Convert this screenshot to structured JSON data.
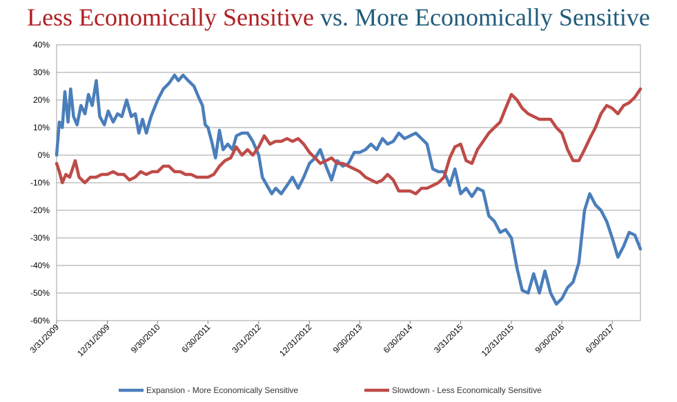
{
  "title": {
    "part1": "Less Economically Sensitive",
    "part2": "vs. More Economically Sensitive"
  },
  "chart_data": {
    "type": "line",
    "title": "Less Economically Sensitive vs. More Economically Sensitive",
    "xlabel": "",
    "ylabel": "",
    "ylim": [
      -60,
      40
    ],
    "yticks": [
      "40%",
      "30%",
      "20%",
      "10%",
      "0%",
      "-10%",
      "-20%",
      "-30%",
      "-40%",
      "-50%",
      "-60%"
    ],
    "ytick_values": [
      40,
      30,
      20,
      10,
      0,
      -10,
      -20,
      -30,
      -40,
      -50,
      -60
    ],
    "xlim": [
      "3/31/2009",
      "11/30/2017"
    ],
    "xticks": [
      "3/31/2009",
      "12/31/2009",
      "9/30/2010",
      "6/30/2011",
      "3/31/2012",
      "12/31/2012",
      "9/30/2013",
      "6/30/2014",
      "3/31/2015",
      "12/31/2015",
      "9/30/2016",
      "6/30/2017"
    ],
    "grid": true,
    "legend_position": "bottom",
    "series": [
      {
        "name": "Expansion - More Economically Sensitive",
        "color": "#4a7ebb",
        "points": [
          [
            "3/31/2009",
            0
          ],
          [
            "4/15/2009",
            12
          ],
          [
            "5/1/2009",
            10
          ],
          [
            "5/15/2009",
            23
          ],
          [
            "6/1/2009",
            12
          ],
          [
            "6/15/2009",
            24
          ],
          [
            "7/1/2009",
            14
          ],
          [
            "7/20/2009",
            11
          ],
          [
            "8/10/2009",
            18
          ],
          [
            "9/1/2009",
            15
          ],
          [
            "9/20/2009",
            22
          ],
          [
            "10/10/2009",
            18
          ],
          [
            "11/1/2009",
            27
          ],
          [
            "11/20/2009",
            14
          ],
          [
            "12/15/2009",
            11
          ],
          [
            "1/5/2010",
            16
          ],
          [
            "2/1/2010",
            12
          ],
          [
            "2/25/2010",
            15
          ],
          [
            "3/20/2010",
            14
          ],
          [
            "4/15/2010",
            20
          ],
          [
            "5/10/2010",
            14
          ],
          [
            "6/1/2010",
            15
          ],
          [
            "6/20/2010",
            8
          ],
          [
            "7/10/2010",
            13
          ],
          [
            "7/31/2010",
            8
          ],
          [
            "8/25/2010",
            14
          ],
          [
            "9/30/2010",
            20
          ],
          [
            "10/31/2010",
            24
          ],
          [
            "11/30/2010",
            26
          ],
          [
            "12/31/2010",
            29
          ],
          [
            "1/20/2011",
            27
          ],
          [
            "2/15/2011",
            29
          ],
          [
            "3/15/2011",
            27
          ],
          [
            "4/15/2011",
            25
          ],
          [
            "5/10/2011",
            21
          ],
          [
            "5/31/2011",
            18
          ],
          [
            "6/15/2011",
            11
          ],
          [
            "6/30/2011",
            10
          ],
          [
            "7/20/2011",
            5
          ],
          [
            "8/10/2011",
            -1
          ],
          [
            "8/31/2011",
            9
          ],
          [
            "9/20/2011",
            2
          ],
          [
            "10/15/2011",
            4
          ],
          [
            "11/10/2011",
            2
          ],
          [
            "12/1/2011",
            7
          ],
          [
            "12/31/2011",
            8
          ],
          [
            "1/31/2012",
            8
          ],
          [
            "2/28/2012",
            5
          ],
          [
            "3/31/2012",
            0
          ],
          [
            "4/20/2012",
            -8
          ],
          [
            "5/15/2012",
            -11
          ],
          [
            "6/10/2012",
            -14
          ],
          [
            "7/1/2012",
            -12
          ],
          [
            "7/31/2012",
            -14
          ],
          [
            "8/31/2012",
            -11
          ],
          [
            "9/30/2012",
            -8
          ],
          [
            "10/31/2012",
            -12
          ],
          [
            "11/30/2012",
            -8
          ],
          [
            "12/31/2012",
            -3
          ],
          [
            "1/31/2013",
            -1
          ],
          [
            "2/28/2013",
            2
          ],
          [
            "3/31/2013",
            -4
          ],
          [
            "4/30/2013",
            -9
          ],
          [
            "5/31/2013",
            -2
          ],
          [
            "6/30/2013",
            -4
          ],
          [
            "7/31/2013",
            -3
          ],
          [
            "8/31/2013",
            1
          ],
          [
            "9/30/2013",
            1
          ],
          [
            "10/31/2013",
            2
          ],
          [
            "11/30/2013",
            4
          ],
          [
            "12/31/2013",
            2
          ],
          [
            "1/31/2014",
            6
          ],
          [
            "2/28/2014",
            4
          ],
          [
            "3/31/2014",
            5
          ],
          [
            "4/30/2014",
            8
          ],
          [
            "5/31/2014",
            6
          ],
          [
            "6/30/2014",
            7
          ],
          [
            "7/31/2014",
            8
          ],
          [
            "8/31/2014",
            6
          ],
          [
            "9/30/2014",
            4
          ],
          [
            "10/31/2014",
            -5
          ],
          [
            "11/30/2014",
            -6
          ],
          [
            "12/31/2014",
            -6
          ],
          [
            "1/31/2015",
            -11
          ],
          [
            "2/28/2015",
            -5
          ],
          [
            "3/31/2015",
            -14
          ],
          [
            "4/30/2015",
            -12
          ],
          [
            "5/31/2015",
            -15
          ],
          [
            "6/30/2015",
            -12
          ],
          [
            "7/31/2015",
            -13
          ],
          [
            "8/31/2015",
            -22
          ],
          [
            "9/30/2015",
            -24
          ],
          [
            "10/31/2015",
            -28
          ],
          [
            "11/30/2015",
            -27
          ],
          [
            "12/31/2015",
            -30
          ],
          [
            "1/31/2016",
            -41
          ],
          [
            "2/28/2016",
            -49
          ],
          [
            "3/31/2016",
            -50
          ],
          [
            "4/30/2016",
            -43
          ],
          [
            "5/31/2016",
            -50
          ],
          [
            "6/30/2016",
            -42
          ],
          [
            "7/31/2016",
            -50
          ],
          [
            "8/31/2016",
            -54
          ],
          [
            "9/30/2016",
            -52
          ],
          [
            "10/31/2016",
            -48
          ],
          [
            "11/30/2016",
            -46
          ],
          [
            "12/31/2016",
            -39
          ],
          [
            "1/31/2017",
            -20
          ],
          [
            "2/28/2017",
            -14
          ],
          [
            "3/31/2017",
            -18
          ],
          [
            "4/30/2017",
            -20
          ],
          [
            "5/31/2017",
            -24
          ],
          [
            "6/30/2017",
            -30
          ],
          [
            "7/31/2017",
            -37
          ],
          [
            "8/31/2017",
            -33
          ],
          [
            "9/30/2017",
            -28
          ],
          [
            "10/31/2017",
            -29
          ],
          [
            "11/30/2017",
            -34
          ]
        ]
      },
      {
        "name": "Slowdown - Less Economically Sensitive",
        "color": "#be4b48",
        "points": [
          [
            "3/31/2009",
            -3
          ],
          [
            "4/15/2009",
            -6
          ],
          [
            "5/1/2009",
            -10
          ],
          [
            "5/20/2009",
            -7
          ],
          [
            "6/10/2009",
            -8
          ],
          [
            "7/10/2009",
            -2
          ],
          [
            "7/31/2009",
            -8
          ],
          [
            "8/31/2009",
            -10
          ],
          [
            "9/30/2009",
            -8
          ],
          [
            "10/31/2009",
            -8
          ],
          [
            "11/30/2009",
            -7
          ],
          [
            "12/31/2009",
            -7
          ],
          [
            "1/31/2010",
            -6
          ],
          [
            "2/28/2010",
            -7
          ],
          [
            "3/31/2010",
            -7
          ],
          [
            "4/30/2010",
            -9
          ],
          [
            "5/31/2010",
            -8
          ],
          [
            "6/30/2010",
            -6
          ],
          [
            "7/31/2010",
            -7
          ],
          [
            "8/31/2010",
            -6
          ],
          [
            "9/30/2010",
            -6
          ],
          [
            "10/31/2010",
            -4
          ],
          [
            "11/30/2010",
            -4
          ],
          [
            "12/31/2010",
            -6
          ],
          [
            "1/31/2011",
            -6
          ],
          [
            "2/28/2011",
            -7
          ],
          [
            "3/31/2011",
            -7
          ],
          [
            "4/30/2011",
            -8
          ],
          [
            "5/31/2011",
            -8
          ],
          [
            "6/30/2011",
            -8
          ],
          [
            "7/31/2011",
            -7
          ],
          [
            "8/31/2011",
            -4
          ],
          [
            "9/30/2011",
            -2
          ],
          [
            "10/31/2011",
            -1
          ],
          [
            "11/30/2011",
            3
          ],
          [
            "12/31/2011",
            0
          ],
          [
            "1/31/2012",
            2
          ],
          [
            "2/28/2012",
            0
          ],
          [
            "3/31/2012",
            3
          ],
          [
            "4/30/2012",
            7
          ],
          [
            "5/31/2012",
            4
          ],
          [
            "6/30/2012",
            5
          ],
          [
            "7/31/2012",
            5
          ],
          [
            "8/31/2012",
            6
          ],
          [
            "9/30/2012",
            5
          ],
          [
            "10/31/2012",
            6
          ],
          [
            "11/30/2012",
            4
          ],
          [
            "12/31/2012",
            1
          ],
          [
            "1/31/2013",
            -1
          ],
          [
            "2/28/2013",
            -3
          ],
          [
            "3/31/2013",
            -2
          ],
          [
            "4/30/2013",
            -1
          ],
          [
            "5/31/2013",
            -3
          ],
          [
            "6/30/2013",
            -3
          ],
          [
            "7/31/2013",
            -4
          ],
          [
            "8/31/2013",
            -5
          ],
          [
            "9/30/2013",
            -6
          ],
          [
            "10/31/2013",
            -8
          ],
          [
            "11/30/2013",
            -9
          ],
          [
            "12/31/2013",
            -10
          ],
          [
            "1/31/2014",
            -9
          ],
          [
            "2/28/2014",
            -7
          ],
          [
            "3/31/2014",
            -9
          ],
          [
            "4/30/2014",
            -13
          ],
          [
            "5/31/2014",
            -13
          ],
          [
            "6/30/2014",
            -13
          ],
          [
            "7/31/2014",
            -14
          ],
          [
            "8/31/2014",
            -12
          ],
          [
            "9/30/2014",
            -12
          ],
          [
            "10/31/2014",
            -11
          ],
          [
            "11/30/2014",
            -10
          ],
          [
            "12/31/2014",
            -8
          ],
          [
            "1/31/2015",
            -1
          ],
          [
            "2/28/2015",
            3
          ],
          [
            "3/31/2015",
            4
          ],
          [
            "4/30/2015",
            -2
          ],
          [
            "5/31/2015",
            -3
          ],
          [
            "6/30/2015",
            2
          ],
          [
            "7/31/2015",
            5
          ],
          [
            "8/31/2015",
            8
          ],
          [
            "9/30/2015",
            10
          ],
          [
            "10/31/2015",
            12
          ],
          [
            "11/30/2015",
            17
          ],
          [
            "12/31/2015",
            22
          ],
          [
            "1/31/2016",
            20
          ],
          [
            "2/28/2016",
            17
          ],
          [
            "3/31/2016",
            15
          ],
          [
            "4/30/2016",
            14
          ],
          [
            "5/31/2016",
            13
          ],
          [
            "6/30/2016",
            13
          ],
          [
            "7/31/2016",
            13
          ],
          [
            "8/31/2016",
            10
          ],
          [
            "9/30/2016",
            8
          ],
          [
            "10/31/2016",
            2
          ],
          [
            "11/30/2016",
            -2
          ],
          [
            "12/31/2016",
            -2
          ],
          [
            "1/31/2017",
            2
          ],
          [
            "2/28/2017",
            6
          ],
          [
            "3/31/2017",
            10
          ],
          [
            "4/30/2017",
            15
          ],
          [
            "5/31/2017",
            18
          ],
          [
            "6/30/2017",
            17
          ],
          [
            "7/31/2017",
            15
          ],
          [
            "8/31/2017",
            18
          ],
          [
            "9/30/2017",
            19
          ],
          [
            "10/31/2017",
            21
          ],
          [
            "11/30/2017",
            24
          ]
        ]
      }
    ]
  }
}
